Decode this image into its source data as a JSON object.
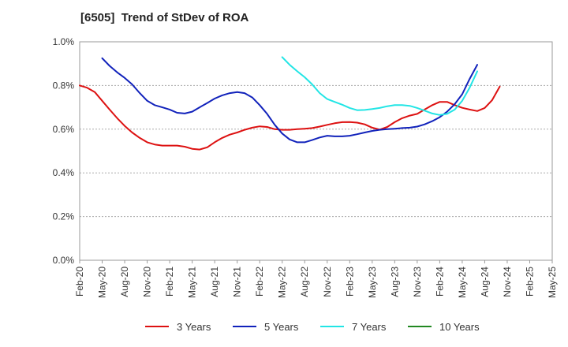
{
  "chart_data": {
    "type": "line",
    "title": "[6505]  Trend of StDev of ROA",
    "xlabel": "",
    "ylabel": "",
    "x_labels": [
      "Feb-20",
      "May-20",
      "Aug-20",
      "Nov-20",
      "Feb-21",
      "May-21",
      "Aug-21",
      "Nov-21",
      "Feb-22",
      "May-22",
      "Aug-22",
      "Nov-22",
      "Feb-23",
      "May-23",
      "Aug-23",
      "Nov-23",
      "Feb-24",
      "May-24",
      "Aug-24",
      "Nov-24",
      "Feb-25",
      "May-25"
    ],
    "y_ticks": [
      0.0,
      0.2,
      0.4,
      0.6,
      0.8,
      1.0
    ],
    "y_tick_labels": [
      "0.0%",
      "0.2%",
      "0.4%",
      "0.6%",
      "0.8%",
      "1.0%"
    ],
    "ylim": [
      0,
      1.0
    ],
    "x_range_quarters": [
      0,
      21
    ],
    "grid": "horizontal dashed",
    "legend_position": "bottom",
    "series": [
      {
        "name": "3 Years",
        "color": "#dd1111",
        "points": [
          [
            0,
            0.8
          ],
          [
            0.33,
            0.79
          ],
          [
            0.67,
            0.77
          ],
          [
            1,
            0.73
          ],
          [
            1.33,
            0.69
          ],
          [
            1.67,
            0.65
          ],
          [
            2,
            0.615
          ],
          [
            2.33,
            0.585
          ],
          [
            2.67,
            0.56
          ],
          [
            3,
            0.54
          ],
          [
            3.33,
            0.53
          ],
          [
            3.67,
            0.525
          ],
          [
            4,
            0.525
          ],
          [
            4.33,
            0.525
          ],
          [
            4.67,
            0.52
          ],
          [
            5,
            0.51
          ],
          [
            5.33,
            0.507
          ],
          [
            5.67,
            0.517
          ],
          [
            6,
            0.54
          ],
          [
            6.33,
            0.56
          ],
          [
            6.67,
            0.575
          ],
          [
            7,
            0.585
          ],
          [
            7.33,
            0.597
          ],
          [
            7.67,
            0.607
          ],
          [
            8,
            0.613
          ],
          [
            8.33,
            0.61
          ],
          [
            8.67,
            0.6
          ],
          [
            9,
            0.597
          ],
          [
            9.33,
            0.597
          ],
          [
            9.67,
            0.6
          ],
          [
            10,
            0.602
          ],
          [
            10.33,
            0.605
          ],
          [
            10.67,
            0.612
          ],
          [
            11,
            0.62
          ],
          [
            11.33,
            0.627
          ],
          [
            11.67,
            0.632
          ],
          [
            12,
            0.633
          ],
          [
            12.33,
            0.63
          ],
          [
            12.67,
            0.622
          ],
          [
            13,
            0.607
          ],
          [
            13.33,
            0.598
          ],
          [
            13.67,
            0.61
          ],
          [
            14,
            0.632
          ],
          [
            14.33,
            0.65
          ],
          [
            14.67,
            0.662
          ],
          [
            15,
            0.67
          ],
          [
            15.33,
            0.69
          ],
          [
            15.67,
            0.71
          ],
          [
            16,
            0.725
          ],
          [
            16.33,
            0.725
          ],
          [
            16.67,
            0.71
          ],
          [
            17,
            0.698
          ],
          [
            17.33,
            0.69
          ],
          [
            17.67,
            0.683
          ],
          [
            18,
            0.697
          ],
          [
            18.33,
            0.733
          ],
          [
            18.67,
            0.795
          ]
        ]
      },
      {
        "name": "5 Years",
        "color": "#1122bb",
        "points": [
          [
            1,
            0.925
          ],
          [
            1.33,
            0.89
          ],
          [
            1.67,
            0.86
          ],
          [
            2,
            0.835
          ],
          [
            2.33,
            0.805
          ],
          [
            2.67,
            0.765
          ],
          [
            3,
            0.73
          ],
          [
            3.33,
            0.71
          ],
          [
            3.67,
            0.7
          ],
          [
            4,
            0.69
          ],
          [
            4.33,
            0.675
          ],
          [
            4.67,
            0.672
          ],
          [
            5,
            0.68
          ],
          [
            5.33,
            0.7
          ],
          [
            5.67,
            0.72
          ],
          [
            6,
            0.74
          ],
          [
            6.33,
            0.755
          ],
          [
            6.67,
            0.765
          ],
          [
            7,
            0.77
          ],
          [
            7.33,
            0.765
          ],
          [
            7.67,
            0.745
          ],
          [
            8,
            0.71
          ],
          [
            8.33,
            0.67
          ],
          [
            8.67,
            0.62
          ],
          [
            9,
            0.58
          ],
          [
            9.33,
            0.553
          ],
          [
            9.67,
            0.54
          ],
          [
            10,
            0.54
          ],
          [
            10.33,
            0.55
          ],
          [
            10.67,
            0.562
          ],
          [
            11,
            0.57
          ],
          [
            11.33,
            0.567
          ],
          [
            11.67,
            0.567
          ],
          [
            12,
            0.57
          ],
          [
            12.33,
            0.577
          ],
          [
            12.67,
            0.585
          ],
          [
            13,
            0.592
          ],
          [
            13.33,
            0.597
          ],
          [
            13.67,
            0.6
          ],
          [
            14,
            0.602
          ],
          [
            14.33,
            0.605
          ],
          [
            14.67,
            0.607
          ],
          [
            15,
            0.612
          ],
          [
            15.33,
            0.622
          ],
          [
            15.67,
            0.637
          ],
          [
            16,
            0.655
          ],
          [
            16.33,
            0.68
          ],
          [
            16.67,
            0.715
          ],
          [
            17,
            0.76
          ],
          [
            17.33,
            0.83
          ],
          [
            17.67,
            0.895
          ]
        ]
      },
      {
        "name": "7 Years",
        "color": "#22e5e5",
        "points": [
          [
            9,
            0.93
          ],
          [
            9.33,
            0.895
          ],
          [
            9.67,
            0.865
          ],
          [
            10,
            0.838
          ],
          [
            10.33,
            0.805
          ],
          [
            10.67,
            0.765
          ],
          [
            11,
            0.738
          ],
          [
            11.33,
            0.725
          ],
          [
            11.67,
            0.712
          ],
          [
            12,
            0.697
          ],
          [
            12.33,
            0.687
          ],
          [
            12.67,
            0.688
          ],
          [
            13,
            0.692
          ],
          [
            13.33,
            0.697
          ],
          [
            13.67,
            0.705
          ],
          [
            14,
            0.71
          ],
          [
            14.33,
            0.71
          ],
          [
            14.67,
            0.707
          ],
          [
            15,
            0.697
          ],
          [
            15.33,
            0.685
          ],
          [
            15.67,
            0.672
          ],
          [
            16,
            0.665
          ],
          [
            16.33,
            0.67
          ],
          [
            16.67,
            0.69
          ],
          [
            17,
            0.73
          ],
          [
            17.33,
            0.79
          ],
          [
            17.67,
            0.865
          ]
        ]
      },
      {
        "name": "10 Years",
        "color": "#228822",
        "points": []
      }
    ]
  }
}
